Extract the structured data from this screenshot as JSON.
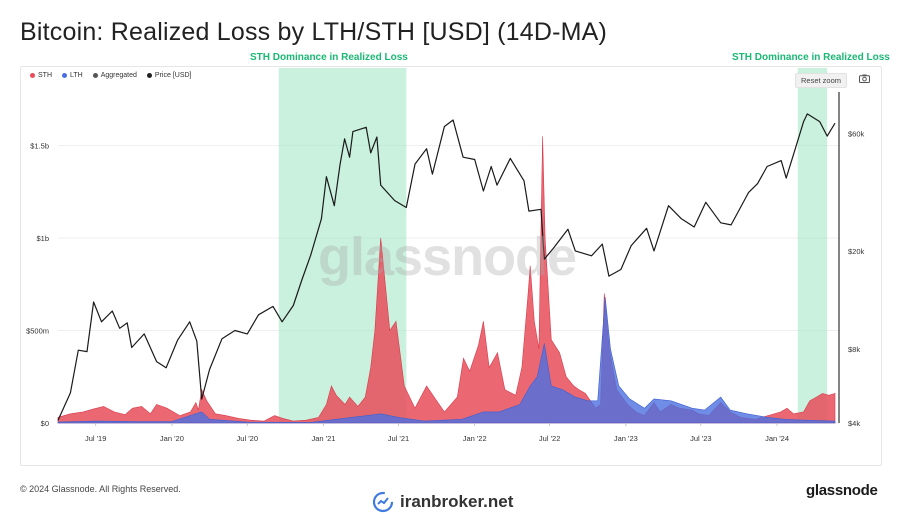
{
  "title": "Bitcoin: Realized Loss by LTH/STH [USD] (14D-MA)",
  "band_labels": [
    "STH Dominance in Realized Loss",
    "STH Dominance in Realized Loss"
  ],
  "legend": [
    {
      "label": "STH",
      "color": "#e84d5b"
    },
    {
      "label": "LTH",
      "color": "#4b6fe0"
    },
    {
      "label": "Aggregated",
      "color": "#555555"
    },
    {
      "label": "Price [USD]",
      "color": "#222222"
    }
  ],
  "toolbar": {
    "reset_zoom": "Reset zoom",
    "camera_icon": "camera-icon"
  },
  "watermark": "glassnode",
  "footer": {
    "copyright": "© 2024 Glassnode. All Rights Reserved.",
    "brand": "glassnode",
    "partner": "iranbroker.net"
  },
  "colors": {
    "sth": "#e84d5b",
    "lth": "#4b6fe0",
    "band": "#9fe3c3",
    "price": "#1a1a1a"
  },
  "chart_data": {
    "type": "area",
    "title": "Bitcoin: Realized Loss by LTH/STH [USD] (14D-MA)",
    "x_ticks": [
      "Jul '19",
      "Jan '20",
      "Jul '20",
      "Jan '21",
      "Jul '21",
      "Jan '22",
      "Jul '22",
      "Jan '23",
      "Jul '23",
      "Jan '24"
    ],
    "x_tick_dates": [
      "2019-07-01",
      "2020-01-01",
      "2020-07-01",
      "2021-01-01",
      "2021-07-01",
      "2022-01-01",
      "2022-07-01",
      "2023-01-01",
      "2023-07-01",
      "2024-01-01"
    ],
    "x_range": [
      "2019-04-01",
      "2024-06-01"
    ],
    "y_left": {
      "ticks": [
        0,
        500000000,
        1000000000,
        1500000000
      ],
      "tick_labels": [
        "$0",
        "$500m",
        "$1b",
        "$1.5b"
      ],
      "range": [
        0,
        1800000000
      ]
    },
    "y_right": {
      "scale": "log",
      "ticks": [
        4000,
        8000,
        20000,
        60000
      ],
      "tick_labels": [
        "$4k",
        "$8k",
        "$20k",
        "$60k"
      ],
      "range": [
        4000,
        90000
      ]
    },
    "highlight_ranges": [
      [
        "2020-09-15",
        "2021-07-20"
      ],
      [
        "2024-02-20",
        "2024-05-01"
      ]
    ],
    "series": [
      {
        "name": "STH",
        "axis": "left",
        "style": "area",
        "points": [
          [
            "2019-04-01",
            30000000
          ],
          [
            "2019-05-01",
            50000000
          ],
          [
            "2019-06-01",
            60000000
          ],
          [
            "2019-06-25",
            75000000
          ],
          [
            "2019-07-20",
            90000000
          ],
          [
            "2019-08-15",
            60000000
          ],
          [
            "2019-09-10",
            45000000
          ],
          [
            "2019-09-28",
            80000000
          ],
          [
            "2019-10-20",
            90000000
          ],
          [
            "2019-11-10",
            50000000
          ],
          [
            "2019-11-25",
            100000000
          ],
          [
            "2019-12-20",
            80000000
          ],
          [
            "2020-01-20",
            40000000
          ],
          [
            "2020-02-15",
            60000000
          ],
          [
            "2020-02-28",
            110000000
          ],
          [
            "2020-03-05",
            70000000
          ],
          [
            "2020-03-13",
            180000000
          ],
          [
            "2020-03-25",
            120000000
          ],
          [
            "2020-04-15",
            50000000
          ],
          [
            "2020-05-10",
            40000000
          ],
          [
            "2020-06-10",
            25000000
          ],
          [
            "2020-07-10",
            15000000
          ],
          [
            "2020-08-10",
            10000000
          ],
          [
            "2020-09-05",
            40000000
          ],
          [
            "2020-09-25",
            25000000
          ],
          [
            "2020-10-20",
            10000000
          ],
          [
            "2020-11-20",
            15000000
          ],
          [
            "2020-12-20",
            30000000
          ],
          [
            "2021-01-08",
            100000000
          ],
          [
            "2021-01-20",
            200000000
          ],
          [
            "2021-02-01",
            150000000
          ],
          [
            "2021-02-22",
            100000000
          ],
          [
            "2021-03-05",
            140000000
          ],
          [
            "2021-03-25",
            90000000
          ],
          [
            "2021-04-12",
            140000000
          ],
          [
            "2021-04-25",
            300000000
          ],
          [
            "2021-05-05",
            500000000
          ],
          [
            "2021-05-19",
            1000000000
          ],
          [
            "2021-05-28",
            800000000
          ],
          [
            "2021-06-10",
            500000000
          ],
          [
            "2021-06-25",
            550000000
          ],
          [
            "2021-07-15",
            200000000
          ],
          [
            "2021-08-10",
            80000000
          ],
          [
            "2021-09-07",
            200000000
          ],
          [
            "2021-09-25",
            140000000
          ],
          [
            "2021-10-20",
            60000000
          ],
          [
            "2021-11-20",
            140000000
          ],
          [
            "2021-12-05",
            350000000
          ],
          [
            "2021-12-20",
            280000000
          ],
          [
            "2022-01-10",
            420000000
          ],
          [
            "2022-01-22",
            550000000
          ],
          [
            "2022-02-05",
            300000000
          ],
          [
            "2022-02-25",
            380000000
          ],
          [
            "2022-03-15",
            180000000
          ],
          [
            "2022-04-10",
            150000000
          ],
          [
            "2022-04-25",
            300000000
          ],
          [
            "2022-05-10",
            700000000
          ],
          [
            "2022-05-15",
            850000000
          ],
          [
            "2022-05-25",
            550000000
          ],
          [
            "2022-06-05",
            400000000
          ],
          [
            "2022-06-14",
            1550000000
          ],
          [
            "2022-06-20",
            1000000000
          ],
          [
            "2022-07-05",
            450000000
          ],
          [
            "2022-07-25",
            380000000
          ],
          [
            "2022-08-10",
            250000000
          ],
          [
            "2022-08-28",
            200000000
          ],
          [
            "2022-09-10",
            180000000
          ],
          [
            "2022-09-25",
            160000000
          ],
          [
            "2022-10-20",
            80000000
          ],
          [
            "2022-11-01",
            100000000
          ],
          [
            "2022-11-10",
            700000000
          ],
          [
            "2022-11-22",
            400000000
          ],
          [
            "2022-12-10",
            180000000
          ],
          [
            "2023-01-05",
            100000000
          ],
          [
            "2023-01-25",
            60000000
          ],
          [
            "2023-02-15",
            40000000
          ],
          [
            "2023-03-10",
            110000000
          ],
          [
            "2023-03-25",
            60000000
          ],
          [
            "2023-04-20",
            100000000
          ],
          [
            "2023-05-10",
            80000000
          ],
          [
            "2023-06-10",
            70000000
          ],
          [
            "2023-06-25",
            50000000
          ],
          [
            "2023-07-20",
            40000000
          ],
          [
            "2023-08-18",
            110000000
          ],
          [
            "2023-09-10",
            60000000
          ],
          [
            "2023-10-05",
            30000000
          ],
          [
            "2023-11-10",
            20000000
          ],
          [
            "2023-12-10",
            40000000
          ],
          [
            "2024-01-10",
            60000000
          ],
          [
            "2024-01-25",
            80000000
          ],
          [
            "2024-02-10",
            50000000
          ],
          [
            "2024-03-05",
            60000000
          ],
          [
            "2024-03-20",
            120000000
          ],
          [
            "2024-04-05",
            140000000
          ],
          [
            "2024-04-20",
            160000000
          ],
          [
            "2024-05-05",
            150000000
          ],
          [
            "2024-05-20",
            160000000
          ]
        ]
      },
      {
        "name": "LTH",
        "axis": "left",
        "style": "area",
        "points": [
          [
            "2019-04-01",
            5000000
          ],
          [
            "2019-07-01",
            10000000
          ],
          [
            "2019-10-01",
            8000000
          ],
          [
            "2020-01-01",
            8000000
          ],
          [
            "2020-03-13",
            60000000
          ],
          [
            "2020-04-01",
            20000000
          ],
          [
            "2020-07-01",
            5000000
          ],
          [
            "2020-12-01",
            3000000
          ],
          [
            "2021-05-20",
            50000000
          ],
          [
            "2021-07-01",
            30000000
          ],
          [
            "2021-09-01",
            10000000
          ],
          [
            "2021-12-01",
            20000000
          ],
          [
            "2022-01-22",
            60000000
          ],
          [
            "2022-03-01",
            60000000
          ],
          [
            "2022-04-20",
            100000000
          ],
          [
            "2022-05-15",
            200000000
          ],
          [
            "2022-06-01",
            250000000
          ],
          [
            "2022-06-18",
            430000000
          ],
          [
            "2022-07-05",
            200000000
          ],
          [
            "2022-08-01",
            180000000
          ],
          [
            "2022-09-01",
            140000000
          ],
          [
            "2022-10-01",
            120000000
          ],
          [
            "2022-10-25",
            120000000
          ],
          [
            "2022-11-12",
            680000000
          ],
          [
            "2022-11-25",
            400000000
          ],
          [
            "2022-12-15",
            200000000
          ],
          [
            "2023-01-10",
            130000000
          ],
          [
            "2023-02-15",
            80000000
          ],
          [
            "2023-03-10",
            130000000
          ],
          [
            "2023-04-20",
            120000000
          ],
          [
            "2023-06-10",
            80000000
          ],
          [
            "2023-07-10",
            70000000
          ],
          [
            "2023-08-18",
            140000000
          ],
          [
            "2023-09-10",
            70000000
          ],
          [
            "2023-10-20",
            50000000
          ],
          [
            "2023-12-10",
            30000000
          ],
          [
            "2024-01-20",
            20000000
          ],
          [
            "2024-03-10",
            15000000
          ],
          [
            "2024-05-20",
            10000000
          ]
        ]
      },
      {
        "name": "Price [USD]",
        "axis": "right",
        "style": "line",
        "points": [
          [
            "2019-04-01",
            4100
          ],
          [
            "2019-05-01",
            5300
          ],
          [
            "2019-05-20",
            7900
          ],
          [
            "2019-06-10",
            7800
          ],
          [
            "2019-06-26",
            12400
          ],
          [
            "2019-07-15",
            10300
          ],
          [
            "2019-08-10",
            11400
          ],
          [
            "2019-08-28",
            9700
          ],
          [
            "2019-09-15",
            10200
          ],
          [
            "2019-09-26",
            8100
          ],
          [
            "2019-10-26",
            9200
          ],
          [
            "2019-11-25",
            7100
          ],
          [
            "2019-12-18",
            6700
          ],
          [
            "2020-01-15",
            8700
          ],
          [
            "2020-02-13",
            10300
          ],
          [
            "2020-03-01",
            8600
          ],
          [
            "2020-03-13",
            5000
          ],
          [
            "2020-04-01",
            6600
          ],
          [
            "2020-05-01",
            8800
          ],
          [
            "2020-06-01",
            9500
          ],
          [
            "2020-07-01",
            9200
          ],
          [
            "2020-07-28",
            11000
          ],
          [
            "2020-09-01",
            11900
          ],
          [
            "2020-09-23",
            10300
          ],
          [
            "2020-10-20",
            12000
          ],
          [
            "2020-11-10",
            15300
          ],
          [
            "2020-12-01",
            19200
          ],
          [
            "2020-12-27",
            27000
          ],
          [
            "2021-01-08",
            40000
          ],
          [
            "2021-01-27",
            30500
          ],
          [
            "2021-02-10",
            45000
          ],
          [
            "2021-02-21",
            57000
          ],
          [
            "2021-03-05",
            48000
          ],
          [
            "2021-03-13",
            61000
          ],
          [
            "2021-04-14",
            63500
          ],
          [
            "2021-04-25",
            50000
          ],
          [
            "2021-05-10",
            58000
          ],
          [
            "2021-05-19",
            37000
          ],
          [
            "2021-06-22",
            32000
          ],
          [
            "2021-07-20",
            30000
          ],
          [
            "2021-08-10",
            45000
          ],
          [
            "2021-09-07",
            52000
          ],
          [
            "2021-09-21",
            41000
          ],
          [
            "2021-10-20",
            64000
          ],
          [
            "2021-11-10",
            68000
          ],
          [
            "2021-12-04",
            48000
          ],
          [
            "2022-01-01",
            47000
          ],
          [
            "2022-01-22",
            35000
          ],
          [
            "2022-02-10",
            44000
          ],
          [
            "2022-02-24",
            37000
          ],
          [
            "2022-03-28",
            47500
          ],
          [
            "2022-04-30",
            38500
          ],
          [
            "2022-05-12",
            29000
          ],
          [
            "2022-06-10",
            29500
          ],
          [
            "2022-06-18",
            18500
          ],
          [
            "2022-07-10",
            20500
          ],
          [
            "2022-08-14",
            24500
          ],
          [
            "2022-09-01",
            20000
          ],
          [
            "2022-10-10",
            19100
          ],
          [
            "2022-11-05",
            21300
          ],
          [
            "2022-11-21",
            15800
          ],
          [
            "2022-12-20",
            16800
          ],
          [
            "2023-01-14",
            21000
          ],
          [
            "2023-02-20",
            24700
          ],
          [
            "2023-03-10",
            20000
          ],
          [
            "2023-04-14",
            30500
          ],
          [
            "2023-05-15",
            27000
          ],
          [
            "2023-06-15",
            25000
          ],
          [
            "2023-07-13",
            31500
          ],
          [
            "2023-08-18",
            26000
          ],
          [
            "2023-09-12",
            25500
          ],
          [
            "2023-10-24",
            34500
          ],
          [
            "2023-11-15",
            37500
          ],
          [
            "2023-12-08",
            44000
          ],
          [
            "2024-01-11",
            46500
          ],
          [
            "2024-01-23",
            39500
          ],
          [
            "2024-02-14",
            52000
          ],
          [
            "2024-03-05",
            67000
          ],
          [
            "2024-03-14",
            72000
          ],
          [
            "2024-04-13",
            67000
          ],
          [
            "2024-05-01",
            58500
          ],
          [
            "2024-05-20",
            66000
          ]
        ]
      }
    ]
  }
}
